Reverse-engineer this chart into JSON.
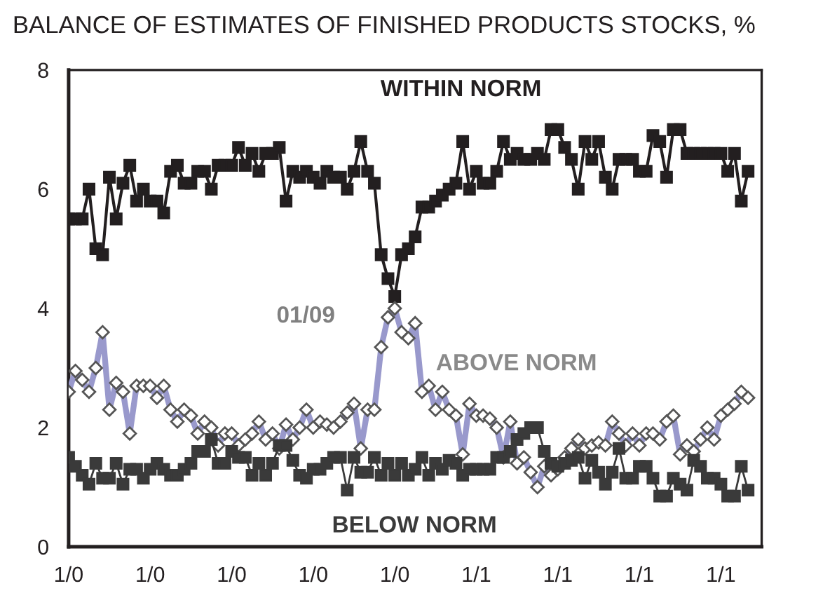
{
  "chart_data": {
    "type": "line",
    "title": "BALANCE OF ESTIMATES OF FINISHED PRODUCTS STOCKS, %",
    "categories": [
      "1/0",
      null,
      null,
      null,
      null,
      null,
      null,
      null,
      null,
      null,
      null,
      null,
      "1/0",
      null,
      null,
      null,
      null,
      null,
      null,
      null,
      null,
      null,
      null,
      null,
      "1/0",
      null,
      null,
      null,
      null,
      null,
      null,
      null,
      null,
      null,
      null,
      null,
      "1/0",
      null,
      null,
      null,
      null,
      null,
      null,
      null,
      null,
      null,
      null,
      null,
      "1/0",
      null,
      null,
      null,
      null,
      null,
      null,
      null,
      null,
      null,
      null,
      null,
      "1/1",
      null,
      null,
      null,
      null,
      null,
      null,
      null,
      null,
      null,
      null,
      null,
      "1/1",
      null,
      null,
      null,
      null,
      null,
      null,
      null,
      null,
      null,
      null,
      null,
      "1/1",
      null,
      null,
      null,
      null,
      null,
      null,
      null,
      null,
      null,
      null,
      null,
      "1/1",
      null,
      null,
      null,
      null
    ],
    "series": [
      {
        "name": "WITHIN NORM",
        "color": "#231f20",
        "marker": "square",
        "values": [
          5.5,
          5.5,
          5.5,
          6.0,
          5.0,
          4.9,
          6.2,
          5.5,
          6.1,
          6.4,
          5.8,
          6.0,
          5.8,
          5.8,
          5.6,
          6.3,
          6.4,
          6.1,
          6.1,
          6.3,
          6.3,
          6.0,
          6.4,
          6.4,
          6.4,
          6.7,
          6.4,
          6.6,
          6.3,
          6.6,
          6.6,
          6.7,
          5.8,
          6.3,
          6.2,
          6.3,
          6.2,
          6.1,
          6.3,
          6.2,
          6.2,
          6.0,
          6.3,
          6.8,
          6.3,
          6.1,
          4.9,
          4.5,
          4.2,
          4.9,
          5.0,
          5.2,
          5.7,
          5.7,
          5.8,
          5.9,
          6.0,
          6.1,
          6.8,
          6.0,
          6.3,
          6.1,
          6.1,
          6.3,
          6.8,
          6.5,
          6.6,
          6.5,
          6.5,
          6.6,
          6.5,
          7.0,
          7.0,
          6.7,
          6.5,
          6.0,
          6.8,
          6.5,
          6.8,
          6.2,
          6.0,
          6.5,
          6.5,
          6.5,
          6.3,
          6.3,
          6.9,
          6.8,
          6.2,
          7.0,
          7.0,
          6.6,
          6.6,
          6.6,
          6.6,
          6.6,
          6.6,
          6.3,
          6.6,
          5.8,
          6.3
        ]
      },
      {
        "name": "ABOVE NORM",
        "color": "#9999cc",
        "marker": "diamond",
        "values": [
          2.6,
          2.95,
          2.8,
          2.6,
          3.0,
          3.6,
          2.3,
          2.75,
          2.6,
          1.9,
          2.7,
          2.7,
          2.7,
          2.5,
          2.7,
          2.3,
          2.1,
          2.3,
          2.2,
          1.9,
          2.1,
          2.0,
          1.7,
          1.9,
          1.9,
          1.7,
          1.8,
          1.9,
          2.1,
          1.8,
          1.9,
          1.65,
          2.05,
          1.8,
          2.0,
          2.3,
          2.0,
          2.1,
          2.05,
          2.0,
          2.1,
          2.25,
          2.4,
          1.65,
          2.3,
          2.3,
          3.35,
          3.85,
          4.0,
          3.6,
          3.5,
          3.75,
          2.6,
          2.7,
          2.3,
          2.6,
          2.3,
          2.2,
          1.55,
          2.4,
          2.2,
          2.2,
          2.15,
          2.0,
          1.5,
          2.1,
          1.4,
          1.5,
          1.25,
          1.0,
          1.35,
          1.2,
          1.3,
          1.5,
          1.65,
          1.8,
          1.65,
          1.7,
          1.75,
          1.7,
          2.1,
          1.9,
          1.7,
          1.9,
          1.7,
          1.9,
          1.9,
          1.8,
          2.1,
          2.2,
          1.55,
          1.7,
          1.6,
          1.8,
          2.0,
          1.8,
          2.2,
          2.3,
          2.4,
          2.6,
          2.5
        ]
      },
      {
        "name": "BELOW NORM",
        "color": "#3a3a3a",
        "marker": "square",
        "values": [
          1.5,
          1.35,
          1.2,
          1.05,
          1.4,
          1.15,
          1.15,
          1.4,
          1.05,
          1.3,
          1.3,
          1.15,
          1.3,
          1.4,
          1.3,
          1.2,
          1.2,
          1.3,
          1.4,
          1.6,
          1.6,
          1.8,
          1.4,
          1.4,
          1.6,
          1.5,
          1.5,
          1.2,
          1.4,
          1.2,
          1.4,
          1.7,
          1.7,
          1.45,
          1.2,
          1.15,
          1.3,
          1.3,
          1.4,
          1.5,
          1.5,
          0.95,
          1.5,
          1.25,
          1.25,
          1.5,
          1.2,
          1.4,
          1.2,
          1.4,
          1.2,
          1.3,
          1.5,
          1.2,
          1.4,
          1.3,
          1.45,
          1.4,
          1.2,
          1.3,
          1.3,
          1.3,
          1.3,
          1.5,
          1.5,
          1.6,
          1.8,
          1.9,
          2.0,
          2.0,
          1.6,
          1.4,
          1.35,
          1.4,
          1.45,
          1.5,
          1.15,
          1.45,
          1.25,
          1.05,
          1.25,
          1.65,
          1.15,
          1.15,
          1.35,
          1.35,
          1.15,
          0.85,
          0.85,
          1.15,
          1.05,
          0.95,
          1.45,
          1.35,
          1.15,
          1.15,
          1.05,
          0.85,
          0.85,
          1.35,
          0.95
        ]
      }
    ],
    "annotations": [
      "01/09"
    ],
    "ylim": [
      0,
      8
    ],
    "yticks": [
      0,
      2,
      4,
      6,
      8
    ],
    "grid": false,
    "legend": false,
    "line_style": "solid"
  }
}
